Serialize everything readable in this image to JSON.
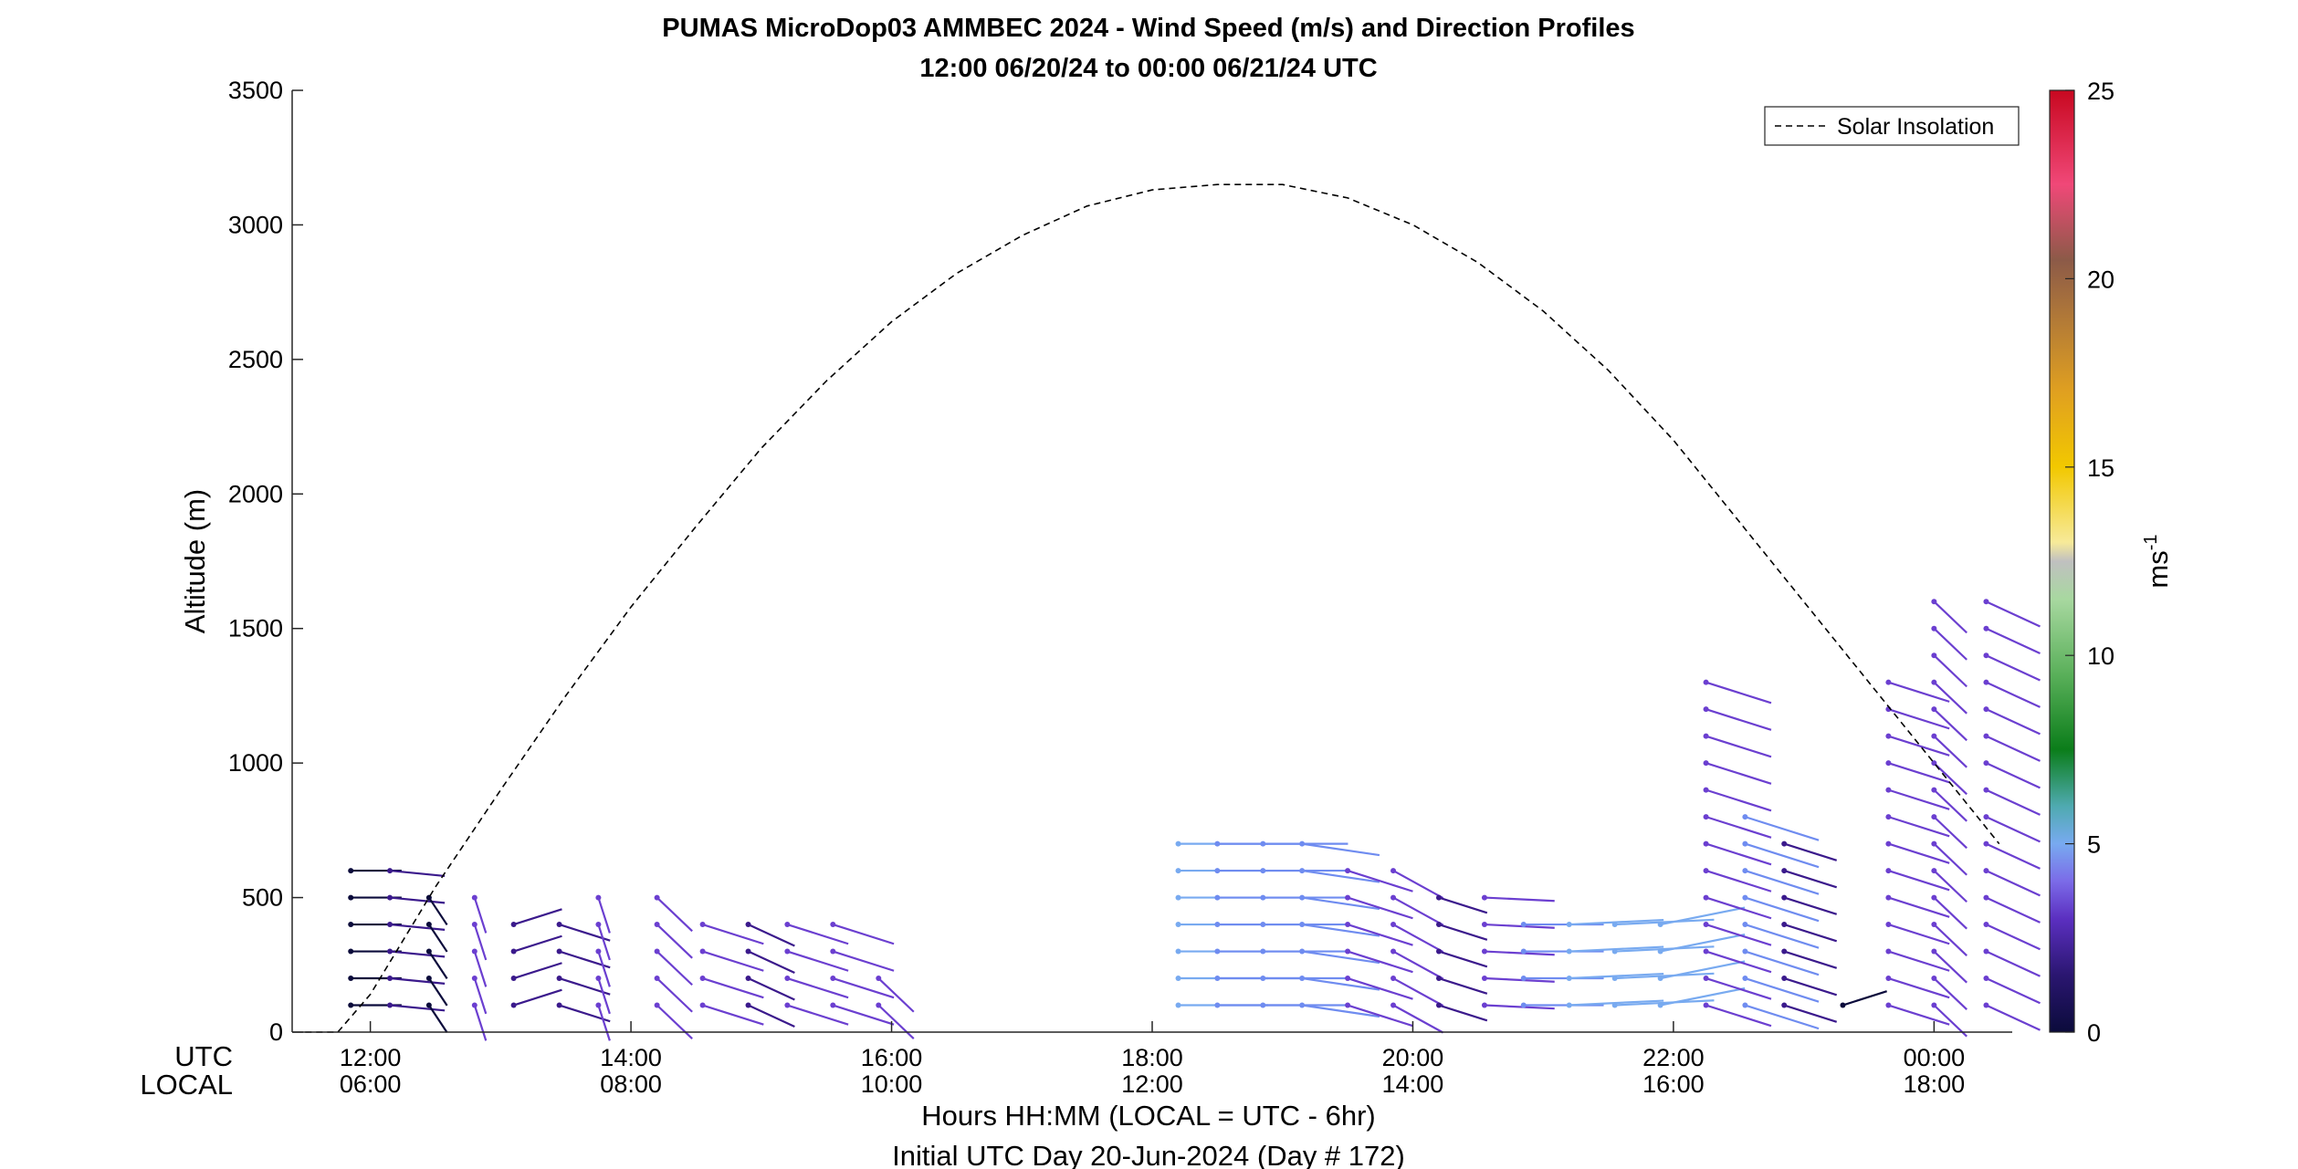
{
  "chart_data": {
    "type": "wind-barb-profile",
    "title": "PUMAS MicroDop03 AMMBEC 2024 - Wind Speed (m/s) and Direction Profiles",
    "subtitle": "12:00 06/20/24 to 00:00 06/21/24  UTC",
    "ylabel": "Altitude (m)",
    "xlabel": "Hours HH:MM  (LOCAL = UTC - 6hr)",
    "xlabel2": "Initial UTC Day 20-Jun-2024 (Day # 172)",
    "xlim": [
      11.4,
      24.6
    ],
    "ylim": [
      0,
      3500
    ],
    "x_row_labels": {
      "utc": "UTC",
      "local": "LOCAL"
    },
    "xticks": [
      {
        "value": 12,
        "utc": "12:00",
        "local": "06:00"
      },
      {
        "value": 14,
        "utc": "14:00",
        "local": "08:00"
      },
      {
        "value": 16,
        "utc": "16:00",
        "local": "10:00"
      },
      {
        "value": 18,
        "utc": "18:00",
        "local": "12:00"
      },
      {
        "value": 20,
        "utc": "20:00",
        "local": "14:00"
      },
      {
        "value": 22,
        "utc": "22:00",
        "local": "16:00"
      },
      {
        "value": 24,
        "utc": "00:00",
        "local": "18:00"
      }
    ],
    "yticks": [
      0,
      500,
      1000,
      1500,
      2000,
      2500,
      3000,
      3500
    ],
    "legend": {
      "entry": "Solar Insolation",
      "placement": "top-right",
      "style": "dashed"
    },
    "colorbar": {
      "label": "ms",
      "label_superscript": "-1",
      "min": 0,
      "max": 25,
      "ticks": [
        0,
        5,
        10,
        15,
        20,
        25
      ],
      "colors": [
        "#0b0b3b",
        "#3b1a8c",
        "#6b3fd0",
        "#6f8cf0",
        "#78aaf0",
        "#1fa37a",
        "#0b7d1a",
        "#3a9c3a",
        "#7cc47c",
        "#a8d8a0",
        "#c0c0c0",
        "#f5e58a",
        "#f2c200",
        "#e8a010",
        "#c07830",
        "#8c5a3c",
        "#a04060",
        "#f04878",
        "#e0304a",
        "#c80820"
      ]
    },
    "solar_insolation": {
      "x": [
        11.5,
        11.75,
        12.0,
        12.5,
        13.0,
        13.5,
        14.0,
        14.5,
        15.0,
        15.5,
        16.0,
        16.5,
        17.0,
        17.5,
        18.0,
        18.5,
        19.0,
        19.5,
        20.0,
        20.5,
        21.0,
        21.5,
        22.0,
        22.5,
        23.0,
        23.5,
        24.0,
        24.5
      ],
      "y": [
        0,
        0,
        140,
        540,
        900,
        1250,
        1580,
        1880,
        2170,
        2420,
        2640,
        2820,
        2960,
        3070,
        3130,
        3150,
        3150,
        3100,
        3000,
        2860,
        2680,
        2460,
        2200,
        1900,
        1600,
        1300,
        1000,
        700
      ]
    },
    "wind_profiles": [
      {
        "time": 11.85,
        "top": 600,
        "speed": 1.0,
        "dir": 270
      },
      {
        "time": 12.15,
        "top": 650,
        "speed": 1.5,
        "dir": 280
      },
      {
        "time": 12.45,
        "top": 550,
        "speed": 1.2,
        "dir": 340
      },
      {
        "time": 12.8,
        "top": 500,
        "speed": 2.5,
        "dir": 350
      },
      {
        "time": 13.1,
        "top": 400,
        "speed": 1.5,
        "dir": 240
      },
      {
        "time": 13.45,
        "top": 400,
        "speed": 1.8,
        "dir": 300
      },
      {
        "time": 13.75,
        "top": 500,
        "speed": 2.5,
        "dir": 350
      },
      {
        "time": 14.2,
        "top": 500,
        "speed": 3.0,
        "dir": 330
      },
      {
        "time": 14.55,
        "top": 450,
        "speed": 3.0,
        "dir": 300
      },
      {
        "time": 14.9,
        "top": 400,
        "speed": 2.0,
        "dir": 310
      },
      {
        "time": 15.2,
        "top": 400,
        "speed": 3.0,
        "dir": 300
      },
      {
        "time": 15.55,
        "top": 400,
        "speed": 3.0,
        "dir": 300
      },
      {
        "time": 15.9,
        "top": 200,
        "speed": 3.0,
        "dir": 330
      },
      {
        "time": 18.2,
        "top": 700,
        "speed": 5.0,
        "dir": 270
      },
      {
        "time": 18.5,
        "top": 700,
        "speed": 4.5,
        "dir": 270
      },
      {
        "time": 18.85,
        "top": 700,
        "speed": 4.5,
        "dir": 270
      },
      {
        "time": 19.15,
        "top": 700,
        "speed": 4.0,
        "dir": 285
      },
      {
        "time": 19.5,
        "top": 650,
        "speed": 3.5,
        "dir": 300
      },
      {
        "time": 19.85,
        "top": 600,
        "speed": 3.0,
        "dir": 315
      },
      {
        "time": 20.2,
        "top": 500,
        "speed": 1.5,
        "dir": 300
      },
      {
        "time": 20.55,
        "top": 500,
        "speed": 3.0,
        "dir": 275
      },
      {
        "time": 20.85,
        "top": 400,
        "speed": 4.0,
        "dir": 270
      },
      {
        "time": 21.2,
        "top": 400,
        "speed": 5.5,
        "dir": 265
      },
      {
        "time": 21.55,
        "top": 400,
        "speed": 6.0,
        "dir": 265
      },
      {
        "time": 21.9,
        "top": 400,
        "speed": 5.0,
        "dir": 250
      },
      {
        "time": 22.25,
        "top": 1300,
        "speed": 3.5,
        "dir": 300
      },
      {
        "time": 22.55,
        "top": 800,
        "speed": 4.5,
        "dir": 300
      },
      {
        "time": 22.85,
        "top": 700,
        "speed": 2.0,
        "dir": 300
      },
      {
        "time": 23.3,
        "top": 100,
        "speed": 1.0,
        "dir": 240
      },
      {
        "time": 23.65,
        "top": 1300,
        "speed": 3.0,
        "dir": 300
      },
      {
        "time": 24.0,
        "top": 1650,
        "speed": 2.5,
        "dir": 330
      },
      {
        "time": 24.4,
        "top": 1650,
        "speed": 3.0,
        "dir": 310
      }
    ]
  }
}
